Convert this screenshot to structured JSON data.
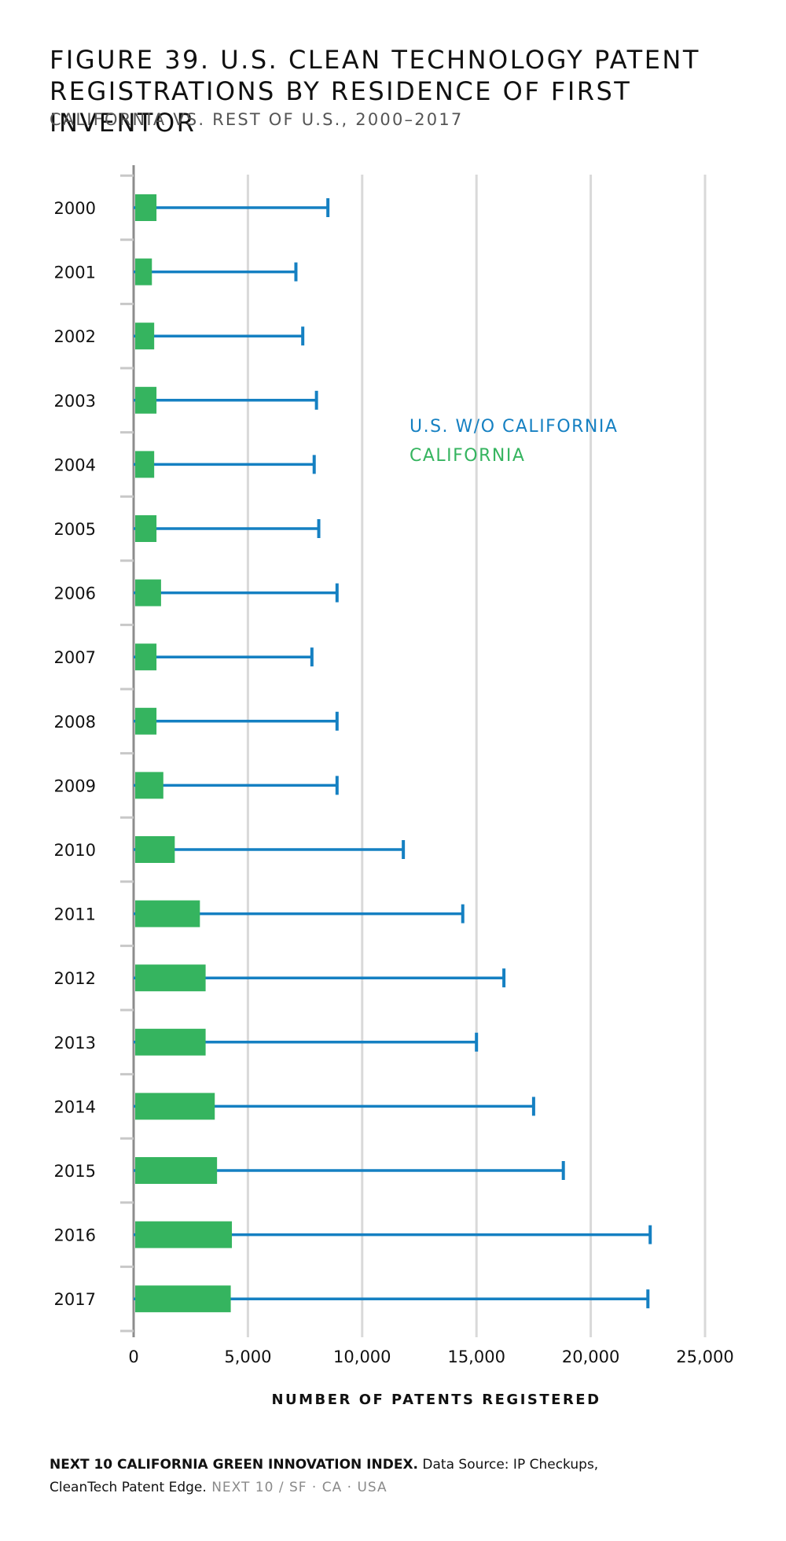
{
  "title_line1": "FIGURE 39. U.S. CLEAN TECHNOLOGY PATENT",
  "title_line2": "REGISTRATIONS BY RESIDENCE OF FIRST INVENTOR",
  "subtitle": "CALIFORNIA VS. REST OF U.S., 2000–2017",
  "colors": {
    "california": "#35b45f",
    "us_wo_california": "#1580c2",
    "grid": "#d9d9d9",
    "axis": "#8c8c8c"
  },
  "chart_data": {
    "type": "bar",
    "orientation": "horizontal",
    "categories": [
      "2000",
      "2001",
      "2002",
      "2003",
      "2004",
      "2005",
      "2006",
      "2007",
      "2008",
      "2009",
      "2010",
      "2011",
      "2012",
      "2013",
      "2014",
      "2015",
      "2016",
      "2017"
    ],
    "series": [
      {
        "name": "CALIFORNIA",
        "style": "bar",
        "values": [
          1000,
          800,
          900,
          1000,
          900,
          1000,
          1200,
          1000,
          1000,
          1300,
          1800,
          2900,
          3150,
          3150,
          3550,
          3650,
          4300,
          4250
        ]
      },
      {
        "name": "U.S. W/O CALIFORNIA",
        "style": "line-with-end-cap",
        "values": [
          8500,
          7100,
          7400,
          8000,
          7900,
          8100,
          8900,
          7800,
          8900,
          8900,
          11800,
          14400,
          16200,
          15000,
          17500,
          18800,
          22600,
          22500
        ]
      }
    ],
    "xticks": [
      "0",
      "5,000",
      "10,000",
      "15,000",
      "20,000",
      "25,000"
    ],
    "xtick_values": [
      0,
      5000,
      10000,
      15000,
      20000,
      25000
    ],
    "xlim": [
      0,
      25000
    ],
    "xlabel": "NUMBER OF PATENTS REGISTERED",
    "ylabel": "",
    "grid": "vertical",
    "legend_position": "upper-right"
  },
  "footer": {
    "index_name": "NEXT 10 CALIFORNIA GREEN INNOVATION INDEX.",
    "source_line1": " Data Source: IP Checkups,",
    "source_line2": "CleanTech Patent Edge.",
    "branding": " NEXT 10  /  SF · CA · USA"
  }
}
